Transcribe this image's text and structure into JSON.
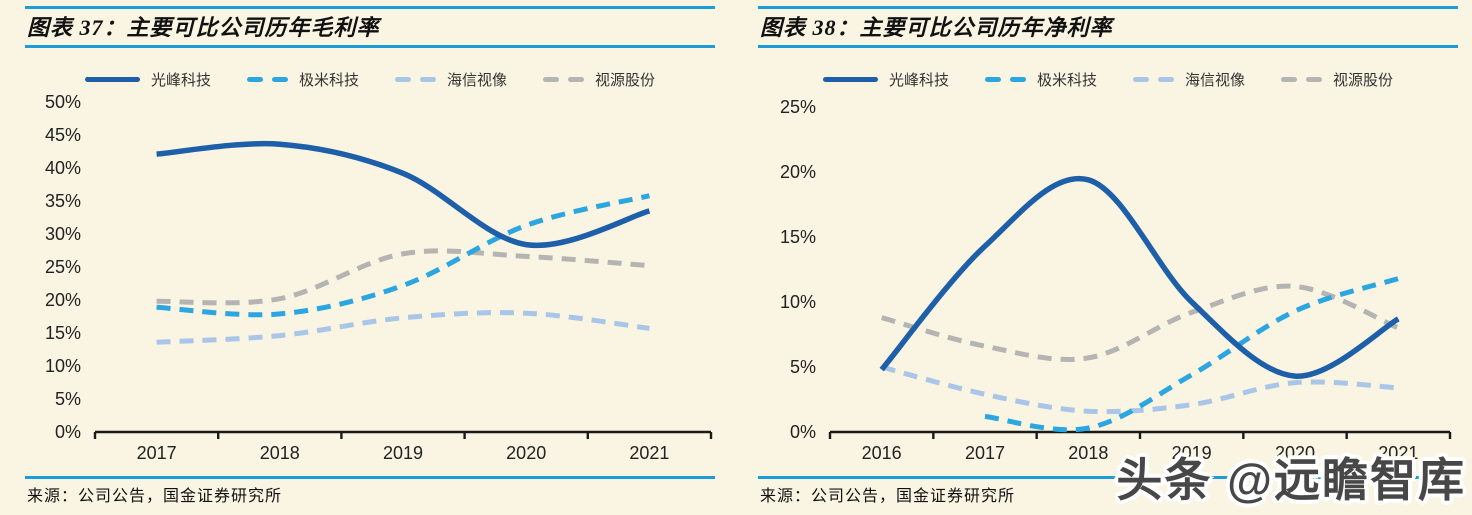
{
  "page": {
    "background": "#faf4e2",
    "accent_rule_color": "#1e9cd7",
    "watermark": "头条 @远瞻智库"
  },
  "chart_data": [
    {
      "type": "line",
      "title": "图表 37：主要可比公司历年毛利率",
      "source": "来源：公司公告，国金证券研究所",
      "x": [
        2017,
        2018,
        2019,
        2020,
        2021
      ],
      "xticks": [
        "2017",
        "2018",
        "2019",
        "2020",
        "2021"
      ],
      "y_unit": "%",
      "ylim": [
        0,
        50
      ],
      "ytick_step": 5,
      "yticks": [
        "0%",
        "5%",
        "10%",
        "15%",
        "20%",
        "25%",
        "30%",
        "35%",
        "40%",
        "45%",
        "50%"
      ],
      "grid": false,
      "legend_position": "top",
      "series": [
        {
          "name": "光峰科技",
          "style": "solid",
          "color": "#1d5fa8",
          "values": [
            42.1,
            43.6,
            39.2,
            28.4,
            33.5
          ]
        },
        {
          "name": "极米科技",
          "style": "dashed",
          "color": "#2ba6e0",
          "values": [
            18.9,
            17.9,
            22.2,
            31.3,
            35.8
          ]
        },
        {
          "name": "海信视像",
          "style": "dashed",
          "color": "#a9c5e8",
          "values": [
            13.6,
            14.6,
            17.3,
            18.0,
            15.7
          ]
        },
        {
          "name": "视源股份",
          "style": "dashed",
          "color": "#b4b4b3",
          "values": [
            19.8,
            20.2,
            27.0,
            26.6,
            25.2
          ]
        }
      ]
    },
    {
      "type": "line",
      "title": "图表 38：主要可比公司历年净利率",
      "source": "来源：公司公告，国金证券研究所",
      "x": [
        2016,
        2017,
        2018,
        2019,
        2020,
        2021
      ],
      "xticks": [
        "2016",
        "2017",
        "2018",
        "2019",
        "2020",
        "2021"
      ],
      "y_unit": "%",
      "ylim": [
        0,
        25
      ],
      "ytick_step": 5,
      "yticks": [
        "0%",
        "5%",
        "10%",
        "15%",
        "20%",
        "25%"
      ],
      "grid": false,
      "legend_position": "top",
      "series": [
        {
          "name": "光峰科技",
          "style": "solid",
          "color": "#1d5fa8",
          "values": [
            4.8,
            14.3,
            19.4,
            10.0,
            4.3,
            8.7
          ]
        },
        {
          "name": "极米科技",
          "style": "dashed",
          "color": "#2ba6e0",
          "values": [
            null,
            1.2,
            0.3,
            4.4,
            9.3,
            11.8
          ]
        },
        {
          "name": "海信视像",
          "style": "dashed",
          "color": "#a9c5e8",
          "values": [
            5.0,
            2.9,
            1.6,
            2.1,
            3.8,
            3.4
          ]
        },
        {
          "name": "视源股份",
          "style": "dashed",
          "color": "#b4b4b3",
          "values": [
            8.8,
            6.6,
            5.7,
            9.2,
            11.2,
            8.0
          ]
        }
      ]
    }
  ]
}
